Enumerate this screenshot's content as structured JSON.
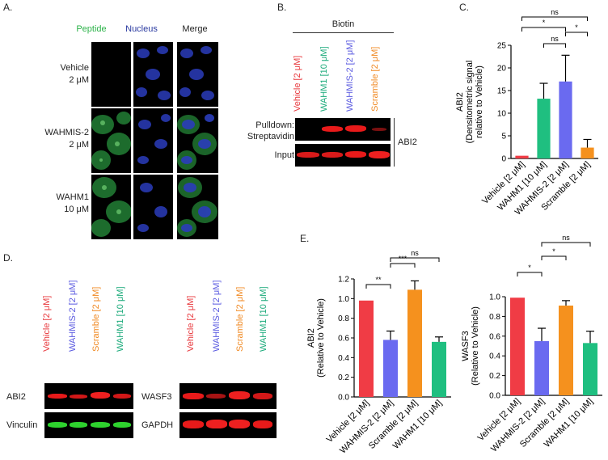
{
  "panels": {
    "a": "A.",
    "b": "B.",
    "c": "C.",
    "d": "D.",
    "e": "E."
  },
  "panelA": {
    "cols": [
      "Peptide",
      "Nucleus",
      "Merge"
    ],
    "rows": [
      {
        "l1": "Vehicle",
        "l2": "2 μM"
      },
      {
        "l1": "WAHMIS-2",
        "l2": "2 μM"
      },
      {
        "l1": "WAHM1",
        "l2": "10 μM"
      }
    ],
    "colors": {
      "peptide": "#2db34a",
      "nucleus": "#2a3aa0"
    }
  },
  "panelB": {
    "header": "Biotin",
    "lanes": [
      {
        "label": "Vehicle [2 μM]",
        "color": "#e8383d"
      },
      {
        "label": "WAHM1 [10 μM]",
        "color": "#1aaa7a"
      },
      {
        "label": "WAHMIS-2 [2 μM]",
        "color": "#5a5ae0"
      },
      {
        "label": "Scramble [2 μM]",
        "color": "#f08a24"
      }
    ],
    "row1a": "Pulldown:",
    "row1b": "Streptavidin",
    "row2": "Input",
    "protein": "ABI2"
  },
  "panelD": {
    "lanes": [
      {
        "label": "Vehicle [2 μM]",
        "color": "#e8383d"
      },
      {
        "label": "WAHMIS-2 [2 μM]",
        "color": "#5a5ae0"
      },
      {
        "label": "Scramble [2 μM]",
        "color": "#f08a24"
      },
      {
        "label": "WAHM1 [10 μM]",
        "color": "#1aaa7a"
      }
    ],
    "left_rows": [
      "ABI2",
      "Vinculin"
    ],
    "right_rows": [
      "WASF3",
      "GAPDH"
    ]
  },
  "chart_data": [
    {
      "id": "C",
      "type": "bar",
      "categories": [
        "Vehicle [2 μM]",
        "WAHM1 [10 μM]",
        "WAHMIS-2 [2 μM]",
        "Scramble [2 μM]"
      ],
      "values": [
        0.6,
        13.2,
        17.0,
        2.4
      ],
      "errors": [
        0,
        3.4,
        5.8,
        1.8
      ],
      "colors": [
        "#f03c45",
        "#1fbf80",
        "#6a6af0",
        "#f5911e"
      ],
      "ylabel_line1": "ABI2",
      "ylabel_line2": "(Densitometric signal",
      "ylabel_line3": "relative to Vehicle)",
      "ylim": [
        0,
        25
      ],
      "yticks": [
        "0",
        "5",
        "10",
        "15",
        "20",
        "25"
      ],
      "significance": [
        {
          "from": 0,
          "to": 2,
          "label": "*"
        },
        {
          "from": 0,
          "to": 3,
          "label": "ns"
        },
        {
          "from": 1,
          "to": 2,
          "label": "ns"
        },
        {
          "from": 2,
          "to": 3,
          "label": "*"
        }
      ]
    },
    {
      "id": "E1",
      "type": "bar",
      "categories": [
        "Vehicle [2 μM]",
        "WAHMIS-2 [2 μM]",
        "Scramble [2 μM]",
        "WAHM1 [10 μM]"
      ],
      "values": [
        0.98,
        0.58,
        1.09,
        0.56
      ],
      "errors": [
        0,
        0.09,
        0.09,
        0.05
      ],
      "colors": [
        "#f03c45",
        "#6a6af0",
        "#f5911e",
        "#1fbf80"
      ],
      "ylabel_line1": "ABI2",
      "ylabel_line2": "(Relative to Vehicle)",
      "ylabel_line3": "",
      "ylim": [
        0,
        1.2
      ],
      "yticks": [
        "0.0",
        "0.2",
        "0.4",
        "0.6",
        "0.8",
        "1.0",
        "1.2"
      ],
      "significance": [
        {
          "from": 0,
          "to": 1,
          "label": "**"
        },
        {
          "from": 1,
          "to": 2,
          "label": "***"
        },
        {
          "from": 1,
          "to": 3,
          "label": "ns"
        }
      ]
    },
    {
      "id": "E2",
      "type": "bar",
      "categories": [
        "Vehicle [2 μM]",
        "WAHMIS-2 [2 μM]",
        "Scramble [2 μM]",
        "WAHM1 [10 μM]"
      ],
      "values": [
        0.99,
        0.55,
        0.91,
        0.53
      ],
      "errors": [
        0,
        0.13,
        0.05,
        0.12
      ],
      "colors": [
        "#f03c45",
        "#6a6af0",
        "#f5911e",
        "#1fbf80"
      ],
      "ylabel_line1": "WASF3",
      "ylabel_line2": "(Relative to Vehicle)",
      "ylabel_line3": "",
      "ylim": [
        0,
        1.0
      ],
      "yticks": [
        "0.0",
        "0.2",
        "0.4",
        "0.6",
        "0.8",
        "1.0"
      ],
      "significance": [
        {
          "from": 0,
          "to": 1,
          "label": "*"
        },
        {
          "from": 1,
          "to": 2,
          "label": "*"
        },
        {
          "from": 1,
          "to": 3,
          "label": "ns"
        }
      ]
    }
  ]
}
